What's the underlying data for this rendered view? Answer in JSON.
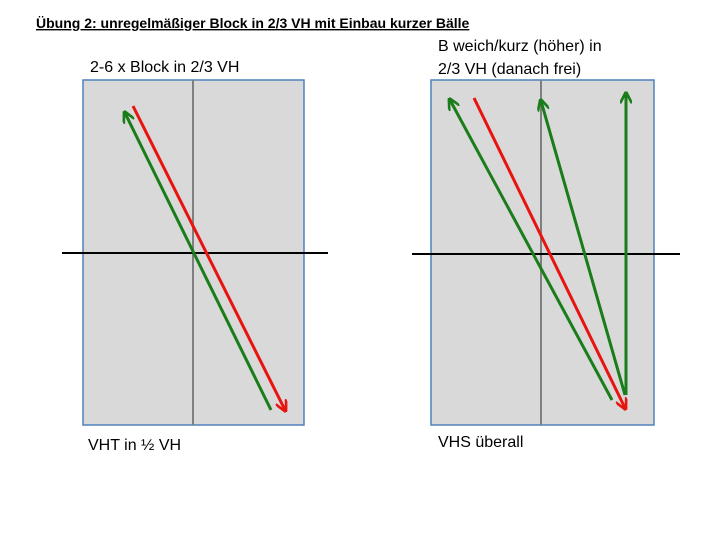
{
  "title": "Übung 2: unregelmäßiger Block in 2/3 VH mit Einbau kurzer Bälle",
  "left_court": {
    "top_label": "2-6 x Block in 2/3 VH",
    "bottom_label": "VHT in ½ VH"
  },
  "right_court": {
    "top_label": [
      "B weich/kurz (höher) in",
      "2/3 VH (danach frei)"
    ],
    "bottom_label": "VHS überall"
  }
}
